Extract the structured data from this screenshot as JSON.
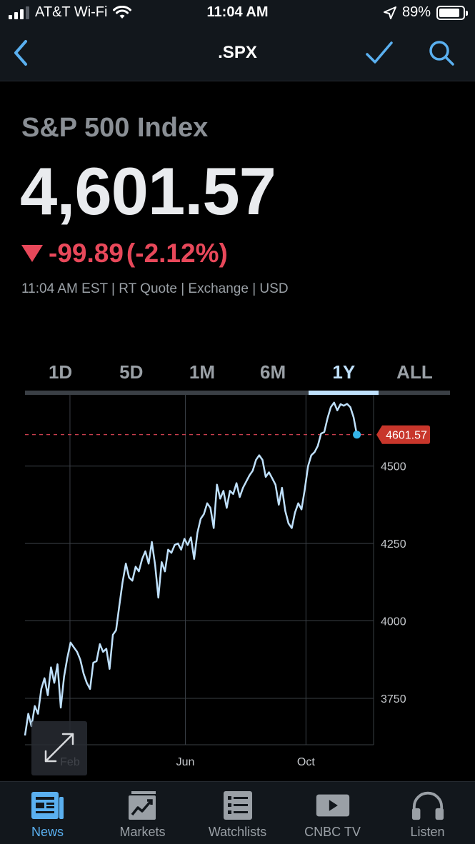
{
  "status_bar": {
    "carrier": "AT&T Wi-Fi",
    "time": "11:04 AM",
    "battery": "89%",
    "battery_level": 0.89
  },
  "nav": {
    "title": ".SPX"
  },
  "quote": {
    "name": "S&P 500 Index",
    "price": "4,601.57",
    "change": "-99.89",
    "change_pct": "(-2.12%)",
    "meta": "11:04 AM EST | RT Quote | Exchange | USD"
  },
  "range_tabs": [
    "1D",
    "5D",
    "1M",
    "6M",
    "1Y",
    "ALL"
  ],
  "active_range": "1Y",
  "colors": {
    "line": "#bfe0fb",
    "negative": "#e8485a",
    "active_tab": "#5ab0f0",
    "marker": "#33b4e8"
  },
  "chart_data": {
    "type": "line",
    "series": [
      {
        "values": [
          3630,
          3700,
          3660,
          3725,
          3700,
          3780,
          3815,
          3760,
          3850,
          3800,
          3860,
          3720,
          3820,
          3880,
          3930,
          3915,
          3900,
          3875,
          3830,
          3800,
          3780,
          3865,
          3870,
          3925,
          3900,
          3910,
          3845,
          3955,
          3970,
          4050,
          4125,
          4185,
          4140,
          4130,
          4175,
          4160,
          4200,
          4225,
          4185,
          4255,
          4180,
          4075,
          4190,
          4160,
          4230,
          4220,
          4245,
          4250,
          4230,
          4265,
          4245,
          4270,
          4200,
          4285,
          4330,
          4345,
          4380,
          4365,
          4300,
          4440,
          4395,
          4420,
          4365,
          4420,
          4410,
          4445,
          4400,
          4430,
          4450,
          4470,
          4485,
          4520,
          4535,
          4520,
          4465,
          4480,
          4460,
          4440,
          4375,
          4430,
          4355,
          4315,
          4300,
          4350,
          4380,
          4360,
          4425,
          4500,
          4535,
          4545,
          4565,
          4605,
          4610,
          4655,
          4690,
          4705,
          4680,
          4700,
          4695,
          4701,
          4690,
          4658,
          4601.57
        ]
      }
    ],
    "x_ticks": [
      "Feb",
      "Jun",
      "Oct"
    ],
    "y_ticks": [
      3750,
      4000,
      4250,
      4500
    ],
    "ylim": [
      3600,
      4730
    ],
    "last_value_label": "4601.57",
    "last_value": 4601.57,
    "x_tick_positions": [
      0.129,
      0.46,
      0.806
    ]
  },
  "tab_bar": {
    "items": [
      {
        "label": "News",
        "icon": "news-icon"
      },
      {
        "label": "Markets",
        "icon": "markets-icon"
      },
      {
        "label": "Watchlists",
        "icon": "watchlists-icon"
      },
      {
        "label": "CNBC TV",
        "icon": "tv-icon"
      },
      {
        "label": "Listen",
        "icon": "headphones-icon"
      }
    ],
    "active": "News"
  }
}
